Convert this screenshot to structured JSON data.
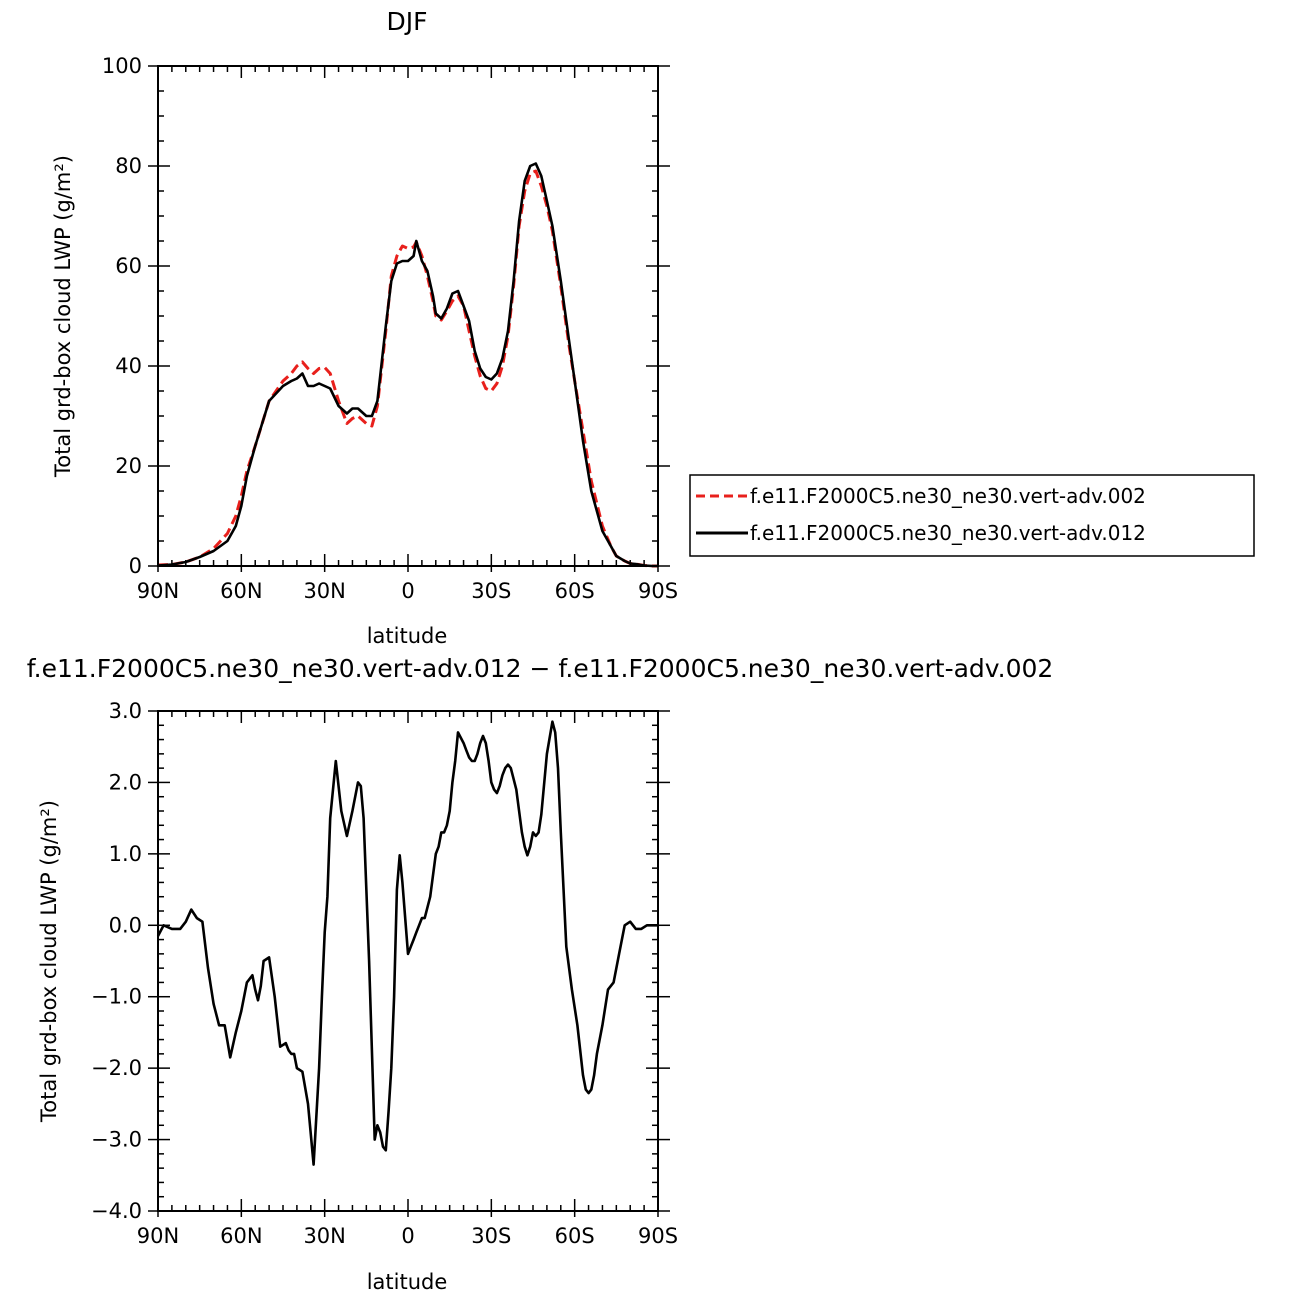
{
  "chart_data": [
    {
      "type": "line",
      "title": "DJF",
      "xlabel": "latitude",
      "ylabel": "Total grd-box cloud LWP (g/m²)",
      "xlim": [
        90,
        -90
      ],
      "ylim": [
        0,
        100
      ],
      "xticks": [
        {
          "value": 90,
          "label": "90N"
        },
        {
          "value": 60,
          "label": "60N"
        },
        {
          "value": 30,
          "label": "30N"
        },
        {
          "value": 0,
          "label": "0"
        },
        {
          "value": -30,
          "label": "30S"
        },
        {
          "value": -60,
          "label": "60S"
        },
        {
          "value": -90,
          "label": "90S"
        }
      ],
      "yticks": [
        {
          "value": 0,
          "label": "0"
        },
        {
          "value": 20,
          "label": "20"
        },
        {
          "value": 40,
          "label": "40"
        },
        {
          "value": 60,
          "label": "60"
        },
        {
          "value": 80,
          "label": "80"
        },
        {
          "value": 100,
          "label": "100"
        }
      ],
      "legend": "right",
      "series": [
        {
          "name": "f.e11.F2000C5.ne30_ne30.vert-adv.002",
          "color": "#e8201c",
          "dash": "dashed",
          "x": [
            90,
            85,
            80,
            75,
            70,
            65,
            62,
            60,
            58,
            55,
            50,
            45,
            42,
            40,
            38,
            36,
            34,
            32,
            30,
            28,
            25,
            22,
            20,
            18,
            15,
            13,
            11,
            10,
            8,
            6,
            4,
            2,
            0,
            -2,
            -3,
            -5,
            -7,
            -9,
            -10,
            -12,
            -14,
            -16,
            -18,
            -20,
            -22,
            -24,
            -26,
            -28,
            -30,
            -32,
            -34,
            -36,
            -38,
            -40,
            -42,
            -44,
            -46,
            -48,
            -50,
            -52,
            -55,
            -58,
            -60,
            -63,
            -66,
            -70,
            -73,
            -75,
            -78,
            -80,
            -82,
            -85,
            -88,
            -90
          ],
          "y": [
            0.2,
            0.3,
            0.8,
            1.8,
            3.5,
            6.5,
            10,
            14,
            19,
            24,
            33,
            37,
            38.5,
            40,
            40.8,
            39.5,
            38.5,
            39.5,
            39.7,
            38.5,
            33,
            28.5,
            29.5,
            30,
            28.5,
            28,
            32,
            37,
            47,
            58,
            62,
            64,
            63.5,
            63.8,
            64.8,
            62,
            58,
            53,
            50,
            49.2,
            51,
            53,
            54,
            52,
            47,
            42,
            38,
            35.5,
            35,
            36.5,
            40,
            46,
            56,
            68,
            75,
            78.5,
            79,
            76,
            72,
            67,
            56,
            44,
            37,
            27,
            17,
            8,
            4,
            2,
            1,
            0.5,
            0.4,
            0.1,
            0,
            0
          ]
        },
        {
          "name": "f.e11.F2000C5.ne30_ne30.vert-adv.012",
          "color": "#000000",
          "dash": "solid",
          "x": [
            90,
            85,
            80,
            75,
            70,
            65,
            62,
            60,
            58,
            55,
            50,
            45,
            42,
            40,
            38,
            36,
            34,
            32,
            30,
            28,
            25,
            22,
            20,
            18,
            15,
            13,
            11,
            10,
            8,
            6,
            4,
            2,
            0,
            -2,
            -3,
            -5,
            -7,
            -9,
            -10,
            -12,
            -14,
            -16,
            -18,
            -20,
            -22,
            -24,
            -26,
            -28,
            -30,
            -32,
            -34,
            -36,
            -38,
            -40,
            -42,
            -44,
            -46,
            -48,
            -50,
            -52,
            -55,
            -58,
            -60,
            -63,
            -66,
            -70,
            -73,
            -75,
            -78,
            -80,
            -82,
            -85,
            -88,
            -90
          ],
          "y": [
            0.1,
            0.3,
            0.8,
            1.8,
            3,
            5,
            8,
            12,
            18,
            24,
            33,
            36,
            37,
            37.5,
            38.5,
            36,
            36,
            36.5,
            36,
            35.5,
            32,
            30.5,
            31.5,
            31.5,
            30,
            30,
            33,
            38,
            48,
            57,
            60.5,
            61,
            61,
            62,
            65,
            61,
            59,
            54,
            50.5,
            49.5,
            51.5,
            54.5,
            55,
            52,
            49,
            43,
            39.5,
            37.8,
            37.3,
            38.5,
            41.5,
            47,
            57,
            69,
            77,
            80,
            80.5,
            78,
            73,
            68,
            57,
            45,
            37,
            25,
            15,
            7,
            4,
            2,
            1,
            0.5,
            0.4,
            0.1,
            0,
            0
          ]
        }
      ]
    },
    {
      "type": "line",
      "title": "f.e11.F2000C5.ne30_ne30.vert-adv.012 − f.e11.F2000C5.ne30_ne30.vert-adv.002",
      "xlabel": "latitude",
      "ylabel": "Total grd-box cloud LWP (g/m²)",
      "xlim": [
        90,
        -90
      ],
      "ylim": [
        -4,
        3
      ],
      "xticks": [
        {
          "value": 90,
          "label": "90N"
        },
        {
          "value": 60,
          "label": "60N"
        },
        {
          "value": 30,
          "label": "30N"
        },
        {
          "value": 0,
          "label": "0"
        },
        {
          "value": -30,
          "label": "30S"
        },
        {
          "value": -60,
          "label": "60S"
        },
        {
          "value": -90,
          "label": "90S"
        }
      ],
      "yticks": [
        {
          "value": -4,
          "label": "−4.0"
        },
        {
          "value": -3,
          "label": "−3.0"
        },
        {
          "value": -2,
          "label": "−2.0"
        },
        {
          "value": -1,
          "label": "−1.0"
        },
        {
          "value": 0,
          "label": "0.0"
        },
        {
          "value": 1,
          "label": "1.0"
        },
        {
          "value": 2,
          "label": "2.0"
        },
        {
          "value": 3,
          "label": "3.0"
        }
      ],
      "series": [
        {
          "color": "#000000",
          "dash": "solid",
          "x": [
            90,
            88,
            85,
            82,
            80,
            78,
            76,
            74,
            72,
            70,
            68,
            66,
            64,
            62,
            60,
            58,
            56,
            55,
            54,
            53,
            52,
            50,
            48,
            46,
            44,
            43,
            42,
            41,
            40,
            38,
            36,
            34,
            32,
            31,
            30,
            29,
            28,
            26,
            24,
            22,
            20,
            18,
            17,
            16,
            14,
            12,
            11,
            10,
            9,
            8,
            7,
            6,
            5,
            4,
            3,
            2,
            1,
            0,
            -1,
            -2,
            -3,
            -4,
            -5,
            -6,
            -8,
            -10,
            -11,
            -12,
            -13,
            -14,
            -15,
            -16,
            -17,
            -18,
            -20,
            -21,
            -22,
            -23,
            -24,
            -25,
            -26,
            -27,
            -28,
            -29,
            -30,
            -31,
            -32,
            -33,
            -34,
            -35,
            -36,
            -37,
            -38,
            -39,
            -40,
            -41,
            -42,
            -43,
            -44,
            -45,
            -46,
            -47,
            -48,
            -50,
            -52,
            -53,
            -54,
            -55,
            -57,
            -59,
            -61,
            -63,
            -64,
            -65,
            -66,
            -67,
            -68,
            -70,
            -72,
            -74,
            -76,
            -78,
            -80,
            -82,
            -84,
            -86,
            -88,
            -90
          ],
          "y": [
            -0.15,
            0,
            -0.05,
            -0.05,
            0.05,
            0.22,
            0.1,
            0.05,
            -0.6,
            -1.1,
            -1.4,
            -1.4,
            -1.85,
            -1.5,
            -1.2,
            -0.8,
            -0.7,
            -0.9,
            -1.05,
            -0.85,
            -0.5,
            -0.45,
            -1,
            -1.7,
            -1.65,
            -1.75,
            -1.8,
            -1.8,
            -2,
            -2.05,
            -2.5,
            -3.35,
            -2,
            -1,
            -0.1,
            0.4,
            1.5,
            2.3,
            1.6,
            1.25,
            1.6,
            2,
            1.95,
            1.5,
            -0.5,
            -3,
            -2.8,
            -2.9,
            -3.1,
            -3.15,
            -2.6,
            -2,
            -1,
            0.5,
            0.98,
            0.6,
            0.1,
            -0.4,
            -0.3,
            -0.2,
            -0.1,
            0,
            0.1,
            0.1,
            0.4,
            1,
            1.1,
            1.3,
            1.3,
            1.4,
            1.6,
            2,
            2.3,
            2.7,
            2.55,
            2.45,
            2.35,
            2.3,
            2.3,
            2.4,
            2.55,
            2.65,
            2.55,
            2.3,
            2,
            1.9,
            1.85,
            1.95,
            2.1,
            2.2,
            2.25,
            2.2,
            2.05,
            1.9,
            1.6,
            1.3,
            1.1,
            0.98,
            1.1,
            1.3,
            1.25,
            1.3,
            1.55,
            2.4,
            2.85,
            2.7,
            2.2,
            1.3,
            -0.3,
            -0.9,
            -1.4,
            -2.1,
            -2.3,
            -2.35,
            -2.3,
            -2.1,
            -1.8,
            -1.4,
            -0.9,
            -0.8,
            -0.4,
            0,
            0.05,
            -0.05,
            -0.05,
            0,
            0,
            0
          ]
        }
      ]
    }
  ]
}
